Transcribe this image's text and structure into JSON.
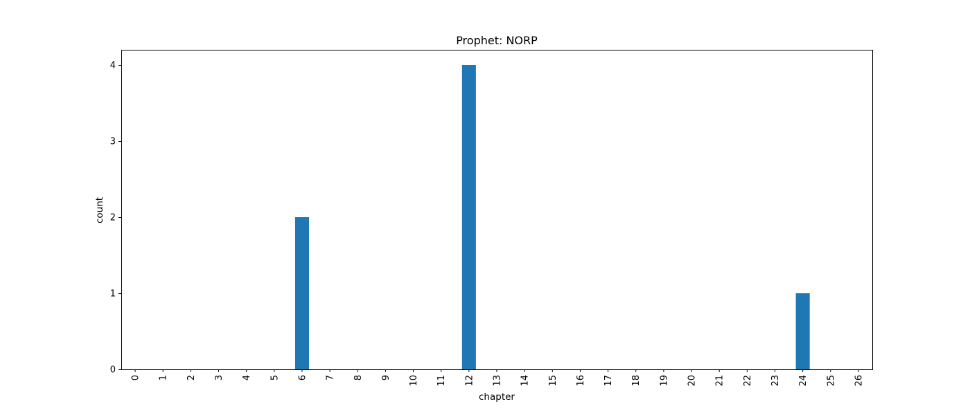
{
  "chart_data": {
    "type": "bar",
    "title": "Prophet: NORP",
    "xlabel": "chapter",
    "ylabel": "count",
    "categories": [
      "0",
      "1",
      "2",
      "3",
      "4",
      "5",
      "6",
      "7",
      "8",
      "9",
      "10",
      "11",
      "12",
      "13",
      "14",
      "15",
      "16",
      "17",
      "18",
      "19",
      "20",
      "21",
      "22",
      "23",
      "24",
      "25",
      "26"
    ],
    "values": [
      0,
      0,
      0,
      0,
      0,
      0,
      2,
      0,
      0,
      0,
      0,
      0,
      4,
      0,
      0,
      0,
      0,
      0,
      0,
      0,
      0,
      0,
      0,
      0,
      1,
      0,
      0
    ],
    "yticks": [
      0,
      1,
      2,
      3,
      4
    ],
    "ylim": [
      0,
      4.2
    ],
    "grid": false,
    "legend": "none",
    "bar_color": "#1f77b4"
  }
}
